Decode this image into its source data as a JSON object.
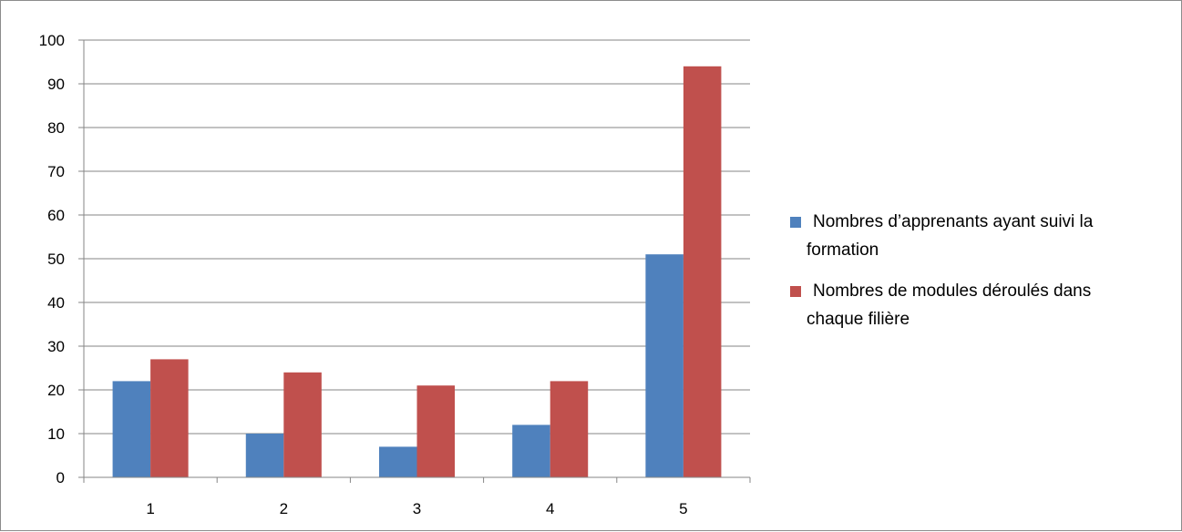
{
  "chart_data": {
    "type": "bar",
    "categories": [
      "1",
      "2",
      "3",
      "4",
      "5"
    ],
    "series": [
      {
        "name": "Nombres d’apprenants ayant suivi la formation",
        "name_lines": [
          "Nombres d’apprenants ayant suivi la",
          "formation"
        ],
        "color": "#4f81bd",
        "values": [
          22,
          10,
          7,
          12,
          51
        ]
      },
      {
        "name": "Nombres de modules déroulés dans chaque filière",
        "name_lines": [
          "Nombres de modules déroulés dans",
          "chaque filière"
        ],
        "color": "#c0504d",
        "values": [
          27,
          24,
          21,
          22,
          94
        ]
      }
    ],
    "ylim": [
      0,
      100
    ],
    "yticks": [
      0,
      10,
      20,
      30,
      40,
      50,
      60,
      70,
      80,
      90,
      100
    ],
    "grid": true,
    "legend_position": "right"
  }
}
